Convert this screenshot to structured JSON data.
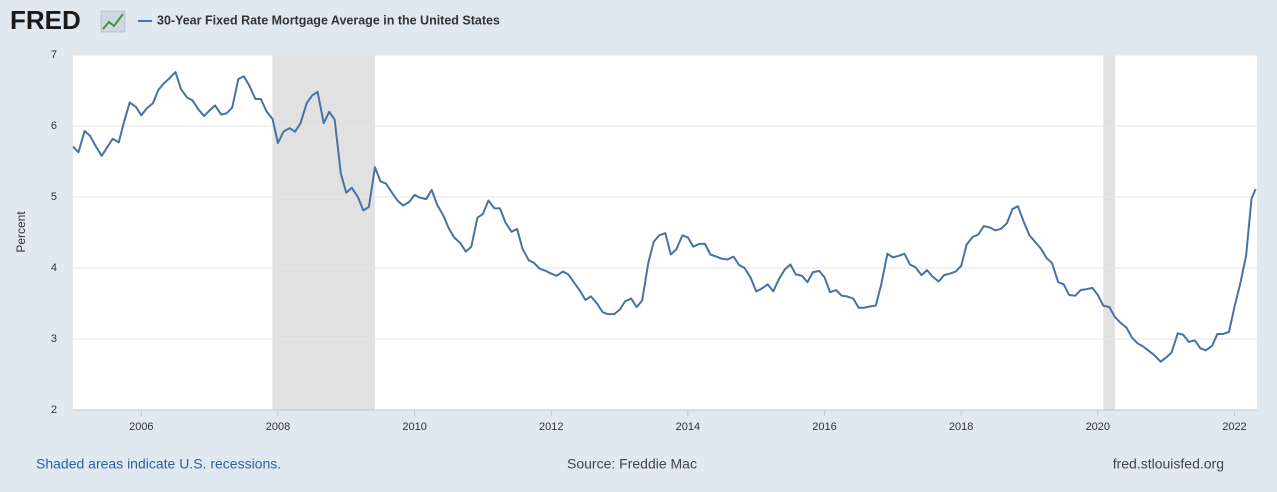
{
  "chart_data": {
    "type": "line",
    "logo": "FRED",
    "title": "30-Year Fixed Rate Mortgage Average in the United States",
    "ylabel": "Percent",
    "note": "Shaded areas indicate U.S. recessions.",
    "source": "Source: Freddie Mac",
    "site": "fred.stlouisfed.org",
    "xlim": [
      2005.0,
      2022.33
    ],
    "xticks": [
      2006,
      2008,
      2010,
      2012,
      2014,
      2016,
      2018,
      2020,
      2022
    ],
    "ylim": [
      2,
      7
    ],
    "yticks": [
      2,
      3,
      4,
      5,
      6,
      7
    ],
    "grid": true,
    "recession_color": "#e1e1e1",
    "recessions": [
      [
        2007.92,
        2009.42
      ],
      [
        2020.08,
        2020.25
      ]
    ],
    "x": [
      2005.0,
      2005.08,
      2005.17,
      2005.25,
      2005.33,
      2005.42,
      2005.5,
      2005.58,
      2005.67,
      2005.75,
      2005.83,
      2005.92,
      2006.0,
      2006.08,
      2006.17,
      2006.25,
      2006.33,
      2006.42,
      2006.5,
      2006.58,
      2006.67,
      2006.75,
      2006.83,
      2006.92,
      2007.0,
      2007.08,
      2007.17,
      2007.25,
      2007.33,
      2007.42,
      2007.5,
      2007.58,
      2007.67,
      2007.75,
      2007.83,
      2007.92,
      2008.0,
      2008.08,
      2008.17,
      2008.25,
      2008.33,
      2008.42,
      2008.5,
      2008.58,
      2008.67,
      2008.75,
      2008.83,
      2008.92,
      2009.0,
      2009.08,
      2009.17,
      2009.25,
      2009.33,
      2009.42,
      2009.5,
      2009.58,
      2009.67,
      2009.75,
      2009.83,
      2009.92,
      2010.0,
      2010.08,
      2010.17,
      2010.25,
      2010.33,
      2010.42,
      2010.5,
      2010.58,
      2010.67,
      2010.75,
      2010.83,
      2010.92,
      2011.0,
      2011.08,
      2011.17,
      2011.25,
      2011.33,
      2011.42,
      2011.5,
      2011.58,
      2011.67,
      2011.75,
      2011.83,
      2011.92,
      2012.0,
      2012.08,
      2012.17,
      2012.25,
      2012.33,
      2012.42,
      2012.5,
      2012.58,
      2012.67,
      2012.75,
      2012.83,
      2012.92,
      2013.0,
      2013.08,
      2013.17,
      2013.25,
      2013.33,
      2013.42,
      2013.5,
      2013.58,
      2013.67,
      2013.75,
      2013.83,
      2013.92,
      2014.0,
      2014.08,
      2014.17,
      2014.25,
      2014.33,
      2014.42,
      2014.5,
      2014.58,
      2014.67,
      2014.75,
      2014.83,
      2014.92,
      2015.0,
      2015.08,
      2015.17,
      2015.25,
      2015.33,
      2015.42,
      2015.5,
      2015.58,
      2015.67,
      2015.75,
      2015.83,
      2015.92,
      2016.0,
      2016.08,
      2016.17,
      2016.25,
      2016.33,
      2016.42,
      2016.5,
      2016.58,
      2016.67,
      2016.75,
      2016.83,
      2016.92,
      2017.0,
      2017.08,
      2017.17,
      2017.25,
      2017.33,
      2017.42,
      2017.5,
      2017.58,
      2017.67,
      2017.75,
      2017.83,
      2017.92,
      2018.0,
      2018.08,
      2018.17,
      2018.25,
      2018.33,
      2018.42,
      2018.5,
      2018.58,
      2018.67,
      2018.75,
      2018.83,
      2018.92,
      2019.0,
      2019.08,
      2019.17,
      2019.25,
      2019.33,
      2019.42,
      2019.5,
      2019.58,
      2019.67,
      2019.75,
      2019.83,
      2019.92,
      2020.0,
      2020.08,
      2020.17,
      2020.25,
      2020.33,
      2020.42,
      2020.5,
      2020.58,
      2020.67,
      2020.75,
      2020.83,
      2020.92,
      2021.0,
      2021.08,
      2021.17,
      2021.25,
      2021.33,
      2021.42,
      2021.5,
      2021.58,
      2021.67,
      2021.75,
      2021.83,
      2021.92,
      2022.0,
      2022.08,
      2022.17,
      2022.25,
      2022.31
    ],
    "series": [
      {
        "name": "30-Year Fixed Rate Mortgage Average in the United States",
        "color": "#4572a7",
        "values": [
          5.71,
          5.63,
          5.93,
          5.86,
          5.72,
          5.58,
          5.7,
          5.82,
          5.77,
          6.07,
          6.33,
          6.27,
          6.15,
          6.25,
          6.32,
          6.51,
          6.6,
          6.68,
          6.76,
          6.52,
          6.4,
          6.36,
          6.24,
          6.14,
          6.22,
          6.29,
          6.16,
          6.18,
          6.26,
          6.66,
          6.7,
          6.57,
          6.38,
          6.38,
          6.21,
          6.1,
          5.76,
          5.92,
          5.97,
          5.92,
          6.04,
          6.32,
          6.43,
          6.48,
          6.04,
          6.2,
          6.09,
          5.33,
          5.06,
          5.13,
          5.0,
          4.81,
          4.86,
          5.42,
          5.22,
          5.19,
          5.06,
          4.95,
          4.88,
          4.93,
          5.03,
          4.99,
          4.97,
          5.1,
          4.89,
          4.74,
          4.56,
          4.43,
          4.35,
          4.23,
          4.3,
          4.71,
          4.76,
          4.95,
          4.84,
          4.84,
          4.64,
          4.51,
          4.55,
          4.27,
          4.11,
          4.07,
          3.99,
          3.96,
          3.92,
          3.89,
          3.95,
          3.91,
          3.8,
          3.68,
          3.55,
          3.6,
          3.5,
          3.38,
          3.35,
          3.35,
          3.41,
          3.53,
          3.57,
          3.45,
          3.54,
          4.07,
          4.37,
          4.46,
          4.49,
          4.19,
          4.26,
          4.46,
          4.43,
          4.3,
          4.34,
          4.34,
          4.19,
          4.16,
          4.13,
          4.12,
          4.16,
          4.04,
          4.0,
          3.86,
          3.67,
          3.71,
          3.77,
          3.67,
          3.84,
          3.98,
          4.05,
          3.91,
          3.89,
          3.8,
          3.94,
          3.96,
          3.87,
          3.66,
          3.69,
          3.61,
          3.6,
          3.57,
          3.44,
          3.44,
          3.46,
          3.47,
          3.77,
          4.2,
          4.15,
          4.17,
          4.2,
          4.05,
          4.01,
          3.9,
          3.97,
          3.88,
          3.81,
          3.9,
          3.92,
          3.95,
          4.03,
          4.33,
          4.44,
          4.47,
          4.59,
          4.57,
          4.53,
          4.55,
          4.63,
          4.83,
          4.87,
          4.64,
          4.46,
          4.37,
          4.27,
          4.14,
          4.07,
          3.8,
          3.77,
          3.62,
          3.61,
          3.69,
          3.7,
          3.72,
          3.62,
          3.47,
          3.45,
          3.31,
          3.23,
          3.16,
          3.02,
          2.94,
          2.89,
          2.83,
          2.77,
          2.68,
          2.74,
          2.81,
          3.08,
          3.06,
          2.96,
          2.98,
          2.87,
          2.84,
          2.9,
          3.07,
          3.07,
          3.1,
          3.45,
          3.76,
          4.17,
          4.98,
          5.11
        ]
      }
    ]
  }
}
